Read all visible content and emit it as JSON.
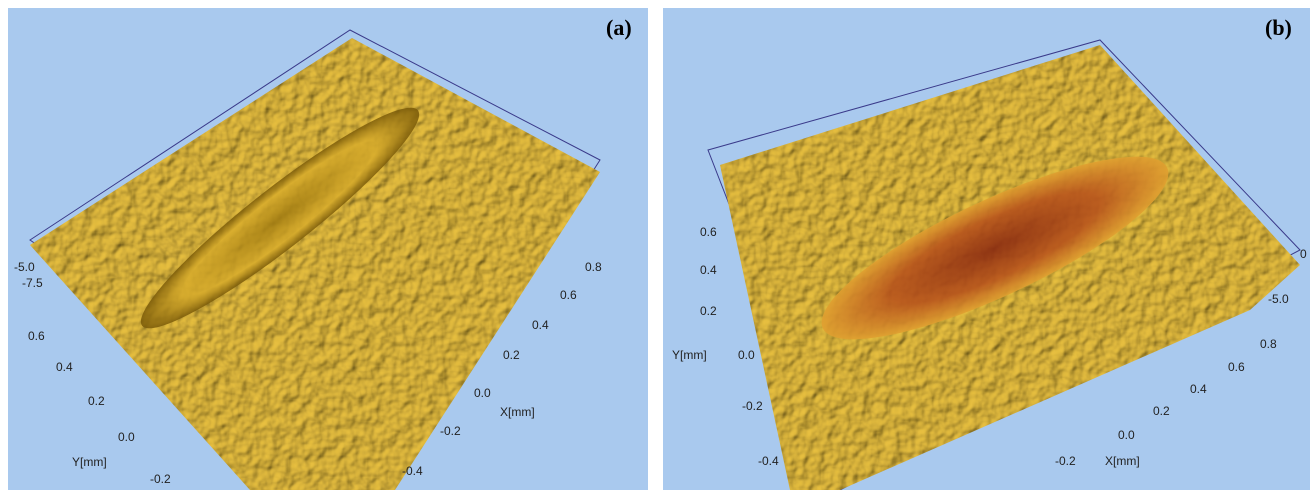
{
  "panels": [
    {
      "label": "(a)",
      "z_ticks": [
        "-5.0",
        "-7.5"
      ],
      "y_ticks": [
        "0.6",
        "0.4",
        "0.2",
        "0.0",
        "-0.2"
      ],
      "y_title": "Y[mm]",
      "x_ticks": [
        "0.8",
        "0.6",
        "0.4",
        "0.2",
        "0.0",
        "-0.2",
        "-0.4"
      ],
      "x_title": "X[mm]"
    },
    {
      "label": "(b)",
      "z_ticks": [
        "0",
        "-5.0"
      ],
      "y_ticks": [
        "0.6",
        "0.4",
        "0.2",
        "0.0",
        "-0.2",
        "-0.4"
      ],
      "y_title": "Y[mm]",
      "x_ticks": [
        "0.8",
        "0.6",
        "0.4",
        "0.2",
        "0.0",
        "-0.2"
      ],
      "x_title": "X[mm]"
    }
  ]
}
